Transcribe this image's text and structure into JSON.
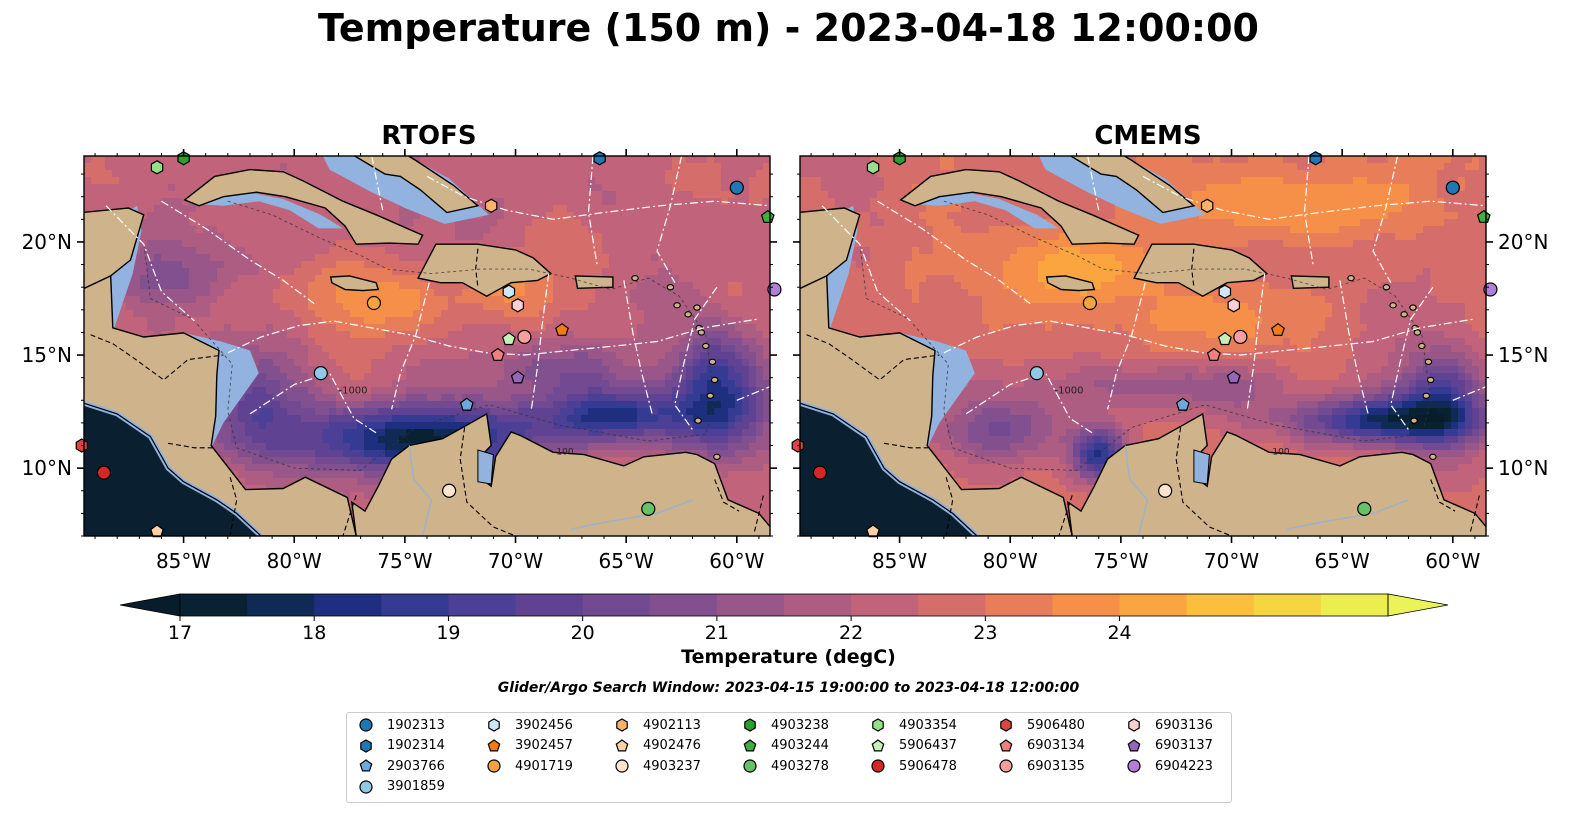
{
  "title": "Temperature (150 m) - 2023-04-18 12:00:00",
  "panels": [
    {
      "name": "RTOFS",
      "model": "rtofs"
    },
    {
      "name": "CMEMS",
      "model": "cmems"
    }
  ],
  "colors": {
    "land": "#cfb38a",
    "shelf": "#92b3df",
    "coastline": "#000000",
    "eez_lines": "#ffffff"
  },
  "chart_data": {
    "type": "heatmap",
    "variable": "Temperature",
    "depth": "150 m",
    "time": "2023-04-18 12:00:00",
    "x_ticks": [
      "85°W",
      "80°W",
      "75°W",
      "70°W",
      "65°W",
      "60°W"
    ],
    "x_tick_values": [
      -85,
      -80,
      -75,
      -70,
      -65,
      -60
    ],
    "y_ticks": [
      "10°N",
      "15°N",
      "20°N"
    ],
    "y_tick_values": [
      10,
      15,
      20
    ],
    "xlim": [
      -89.5,
      -58.5
    ],
    "ylim": [
      7.0,
      23.8
    ],
    "contour_labels": [
      "-100",
      "-1000"
    ],
    "colorbar": {
      "label": "Temperature (degC)",
      "ticks": [
        17,
        18,
        19,
        20,
        21,
        22,
        23,
        24
      ],
      "min": 17,
      "max": 24.5,
      "step": 0.5,
      "extend": "both",
      "colors": [
        "#082233",
        "#0f2a55",
        "#1f2f7f",
        "#353a92",
        "#4c3f96",
        "#5f4392",
        "#724a91",
        "#83508f",
        "#985689",
        "#ad5c82",
        "#c1647b",
        "#d56e6b",
        "#e77d59",
        "#f68f47",
        "#fba540",
        "#fbbf3d",
        "#f5d640",
        "#ecee4d"
      ],
      "under_color": "#071d2c",
      "over_color": "#ecf259"
    },
    "models": {
      "rtofs": {
        "description": "warmer north basin, cold pool offshore Colombia/Venezuela"
      },
      "cmems": {
        "description": "broader warm band across central Caribbean"
      }
    },
    "legend_title": "Glider/Argo Search Window: 2023-04-15 19:00:00 to 2023-04-18 12:00:00",
    "floats": [
      {
        "id": "1902313",
        "marker": "circle",
        "color": "#1f77b4",
        "lon": -60.0,
        "lat": 22.4
      },
      {
        "id": "1902314",
        "marker": "hexagon",
        "color": "#1f77b4",
        "lon": -66.2,
        "lat": 23.7
      },
      {
        "id": "2903766",
        "marker": "pentagon",
        "color": "#6fa8dc",
        "lon": -72.2,
        "lat": 12.8
      },
      {
        "id": "3901859",
        "marker": "circle",
        "color": "#8ecae6",
        "lon": -78.8,
        "lat": 14.2
      },
      {
        "id": "3902456",
        "marker": "hexagon",
        "color": "#cde7f7",
        "lon": -70.3,
        "lat": 17.8
      },
      {
        "id": "3902457",
        "marker": "pentagon",
        "color": "#f07c16",
        "lon": -67.9,
        "lat": 16.1
      },
      {
        "id": "4901719",
        "marker": "circle",
        "color": "#f4a340",
        "lon": -76.4,
        "lat": 17.3
      },
      {
        "id": "4902113",
        "marker": "hexagon",
        "color": "#fbb26a",
        "lon": -71.1,
        "lat": 21.6
      },
      {
        "id": "4902476",
        "marker": "pentagon",
        "color": "#fcd1a8",
        "lon": -86.2,
        "lat": 7.2
      },
      {
        "id": "4903237",
        "marker": "circle",
        "color": "#fde4cc",
        "lon": -73.0,
        "lat": 9.0
      },
      {
        "id": "4903238",
        "marker": "hexagon",
        "color": "#2ca02c",
        "lon": -85.0,
        "lat": 23.7
      },
      {
        "id": "4903244",
        "marker": "pentagon",
        "color": "#3fae3f",
        "lon": -58.6,
        "lat": 21.1
      },
      {
        "id": "4903278",
        "marker": "circle",
        "color": "#66c266",
        "lon": -64.0,
        "lat": 8.2
      },
      {
        "id": "4903354",
        "marker": "hexagon",
        "color": "#98df8a",
        "lon": -86.2,
        "lat": 23.3
      },
      {
        "id": "5906437",
        "marker": "pentagon",
        "color": "#c7f0b8",
        "lon": -70.3,
        "lat": 15.7
      },
      {
        "id": "5906478",
        "marker": "circle",
        "color": "#d62728",
        "lon": -88.6,
        "lat": 9.8
      },
      {
        "id": "5906480",
        "marker": "hexagon",
        "color": "#dd4444",
        "lon": -89.6,
        "lat": 11.0
      },
      {
        "id": "6903134",
        "marker": "pentagon",
        "color": "#f08080",
        "lon": -70.8,
        "lat": 15.0
      },
      {
        "id": "6903135",
        "marker": "circle",
        "color": "#f4a0a0",
        "lon": -69.6,
        "lat": 15.8
      },
      {
        "id": "6903136",
        "marker": "hexagon",
        "color": "#fbd0d0",
        "lon": -69.9,
        "lat": 17.2
      },
      {
        "id": "6903137",
        "marker": "pentagon",
        "color": "#9467bd",
        "lon": -69.9,
        "lat": 14.0
      },
      {
        "id": "6904223",
        "marker": "circle",
        "color": "#b07fd8",
        "lon": -58.3,
        "lat": 17.9
      }
    ]
  }
}
